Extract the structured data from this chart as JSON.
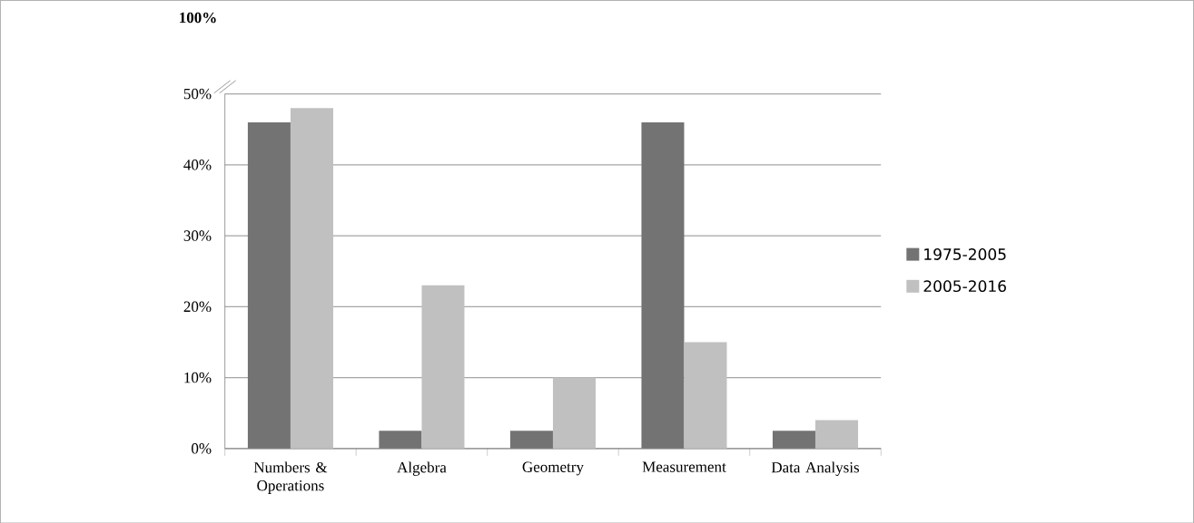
{
  "chart_data": {
    "type": "bar",
    "categories": [
      "Numbers & Operations",
      "Algebra",
      "Geometry",
      "Measurement",
      "Data Analysis"
    ],
    "series": [
      {
        "name": "1975-2005",
        "color": "#737373",
        "values": [
          46,
          2.5,
          2.5,
          46,
          2.5
        ]
      },
      {
        "name": "2005-2016",
        "color": "#c0c0c0",
        "values": [
          48,
          23,
          10,
          15,
          4
        ]
      }
    ],
    "ylim": [
      0,
      50
    ],
    "yticks": [
      {
        "value": 0,
        "label": "0%"
      },
      {
        "value": 10,
        "label": "10%"
      },
      {
        "value": 20,
        "label": "20%"
      },
      {
        "value": 30,
        "label": "30%"
      },
      {
        "value": 40,
        "label": "40%"
      },
      {
        "value": 50,
        "label": "50%"
      }
    ],
    "annotations": [
      "100%"
    ],
    "grid": "y",
    "legend": "right"
  }
}
